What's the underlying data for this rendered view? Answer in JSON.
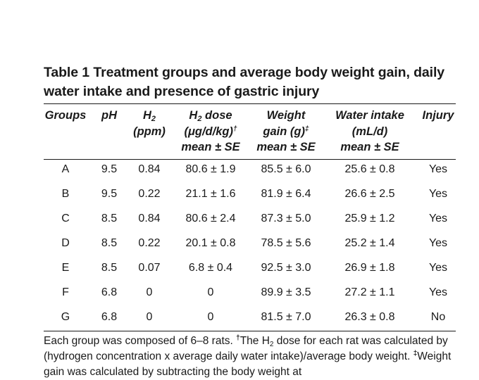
{
  "table": {
    "title": "Table 1 Treatment groups and average body weight gain, daily water intake and presence of gastric injury",
    "headers": {
      "groups": "Groups",
      "ph": "pH",
      "h2_base": "H",
      "h2_sub": "2",
      "h2_unit": "(ppm)",
      "h2dose_base": "H",
      "h2dose_sub": "2",
      "h2dose_word": " dose",
      "h2dose_unit": "(μg/d/kg)",
      "h2dose_mark": "†",
      "h2dose_stat": "mean ± SE",
      "wg_line1": "Weight",
      "wg_line2": "gain (g)",
      "wg_mark": "‡",
      "wg_stat": "mean ± SE",
      "wi_line1": "Water intake",
      "wi_line2": "(mL/d)",
      "wi_stat": "mean ± SE",
      "injury": "Injury"
    },
    "rows": [
      {
        "group": "A",
        "ph": "9.5",
        "h2": "0.84",
        "dose": "80.6 ± 1.9",
        "weight": "85.5 ± 6.0",
        "water": "25.6 ± 0.8",
        "injury": "Yes"
      },
      {
        "group": "B",
        "ph": "9.5",
        "h2": "0.22",
        "dose": "21.1 ± 1.6",
        "weight": "81.9 ± 6.4",
        "water": "26.6 ± 2.5",
        "injury": "Yes"
      },
      {
        "group": "C",
        "ph": "8.5",
        "h2": "0.84",
        "dose": "80.6 ± 2.4",
        "weight": "87.3 ± 5.0",
        "water": "25.9 ± 1.2",
        "injury": "Yes"
      },
      {
        "group": "D",
        "ph": "8.5",
        "h2": "0.22",
        "dose": "20.1 ± 0.8",
        "weight": "78.5 ± 5.6",
        "water": "25.2 ± 1.4",
        "injury": "Yes"
      },
      {
        "group": "E",
        "ph": "8.5",
        "h2": "0.07",
        "dose": "6.8 ± 0.4",
        "weight": "92.5 ± 3.0",
        "water": "26.9 ± 1.8",
        "injury": "Yes"
      },
      {
        "group": "F",
        "ph": "6.8",
        "h2": "0",
        "dose": "0",
        "weight": "89.9 ± 3.5",
        "water": "27.2 ± 1.1",
        "injury": "Yes"
      },
      {
        "group": "G",
        "ph": "6.8",
        "h2": "0",
        "dose": "0",
        "weight": "81.5 ± 7.0",
        "water": "26.3 ± 0.8",
        "injury": "No"
      }
    ],
    "footnote": {
      "part1": "Each group was composed of 6–8 rats. ",
      "dagger": "†",
      "part2": "The H",
      "sub2": "2",
      "part3": " dose for each rat was calculated by (hydrogen concentration x average daily water intake)/average body weight. ",
      "ddagger": "‡",
      "part4": "Weight gain was calculated by subtracting the body weight at"
    }
  }
}
